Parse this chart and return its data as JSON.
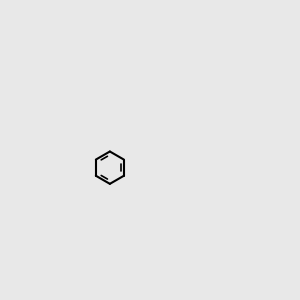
{
  "background_color": "#e8e8e8",
  "bond_color": "#000000",
  "atom_colors": {
    "O": "#ff0000",
    "N": "#0000ff",
    "H": "#008080",
    "C": "#000000"
  },
  "figsize": [
    3.0,
    3.0
  ],
  "dpi": 100
}
